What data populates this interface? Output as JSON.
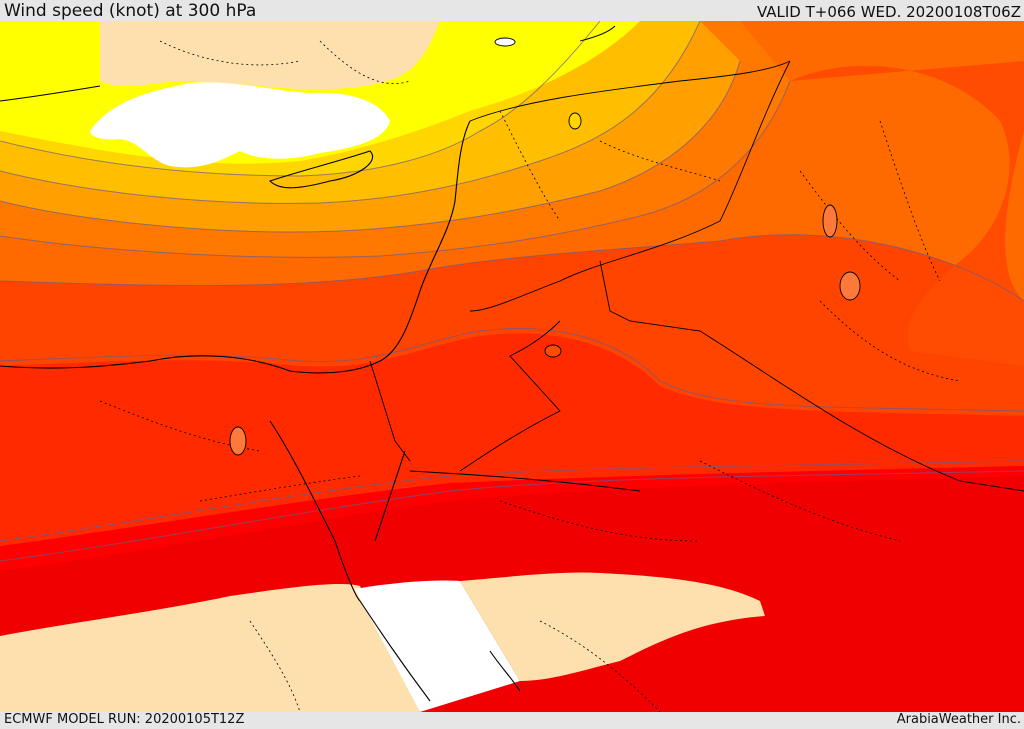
{
  "header": {
    "title": "Wind speed (knot) at 300 hPa",
    "valid_time": "VALID T+066 WED. 20200108T06Z"
  },
  "footer": {
    "model_run": "ECMWF MODEL RUN: 20200105T12Z",
    "credit": "ArabiaWeather Inc."
  },
  "map": {
    "field": "wind speed at 300 hPa",
    "palette": {
      "land_low": "#fde0ad",
      "sea_low": "#ffffff",
      "band_1": "#ffff00",
      "band_2": "#fff200",
      "band_3": "#ffd700",
      "band_4": "#ffbe00",
      "band_5": "#ffa500",
      "band_6": "#ff8a00",
      "band_7": "#ff6a00",
      "band_8": "#ff4a00",
      "band_9": "#ff2e00",
      "band_10": "#ff1400",
      "band_11": "#ff0000",
      "band_12": "#f20000"
    }
  }
}
